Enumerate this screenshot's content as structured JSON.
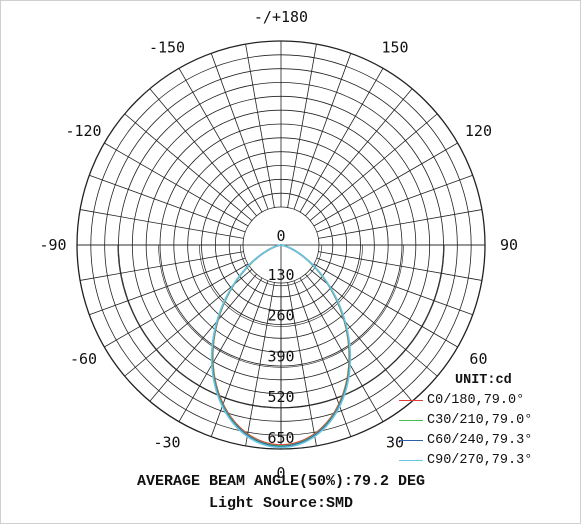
{
  "chart_data": {
    "type": "polar",
    "angle_labels": [
      {
        "text": "-/+180",
        "deg": 180
      },
      {
        "text": "150",
        "deg": 150
      },
      {
        "text": "120",
        "deg": 120
      },
      {
        "text": "90",
        "deg": 90
      },
      {
        "text": "60",
        "deg": 60
      },
      {
        "text": "30",
        "deg": 30
      },
      {
        "text": "0",
        "deg": 0
      },
      {
        "text": "-30",
        "deg": -30
      },
      {
        "text": "-60",
        "deg": -60
      },
      {
        "text": "-90",
        "deg": -90
      },
      {
        "text": "-120",
        "deg": -120
      },
      {
        "text": "-150",
        "deg": -150
      }
    ],
    "radial_ticks": [
      "0",
      "130",
      "260",
      "390",
      "520",
      "650"
    ],
    "radial_values": [
      0,
      130,
      260,
      390,
      520,
      650
    ],
    "r_max": 650,
    "unit_label": "UNIT:cd",
    "series": [
      {
        "name": "C0/180,79.0°",
        "color": "#e03b3b",
        "peak": 637,
        "beam_angle_deg": 79.0
      },
      {
        "name": "C30/210,79.0°",
        "color": "#4cbb4c",
        "peak": 640,
        "beam_angle_deg": 79.0
      },
      {
        "name": "C60/240,79.3°",
        "color": "#2f5fa8",
        "peak": 642,
        "beam_angle_deg": 79.3
      },
      {
        "name": "C90/270,79.3°",
        "color": "#6cc6e0",
        "peak": 645,
        "beam_angle_deg": 79.3
      }
    ],
    "footer": {
      "line1": "AVERAGE BEAM ANGLE(50%):79.2 DEG",
      "line2": "Light Source:SMD"
    }
  }
}
